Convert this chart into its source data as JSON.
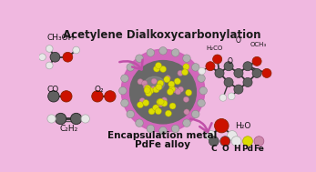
{
  "bg_color": "#f0b8e0",
  "title": "Acetylene Dialkoxycarbonylation",
  "title_fontsize": 8.5,
  "title_fontweight": "bold",
  "subtitle1": "Encapsulation metal",
  "subtitle2": "PdFe alloy",
  "subtitle_fontsize": 7.5,
  "subtitle_fontweight": "bold",
  "legend_labels": [
    "C",
    "O",
    "H",
    "Pd",
    "Fe"
  ],
  "legend_colors": [
    "#606060",
    "#cc1100",
    "#e8e8e8",
    "#dddd00",
    "#cc88aa"
  ],
  "sphere_outer_color": "#d060b8",
  "sphere_inner_color": "#686868",
  "spike_color": "#aaaaaa",
  "nano_yellow": "#dddd00",
  "nano_pink": "#cc88aa",
  "arrow_color": "#c050a8",
  "mol_carbon": "#606060",
  "mol_oxygen": "#cc1100",
  "mol_hydrogen": "#e8e8e8"
}
